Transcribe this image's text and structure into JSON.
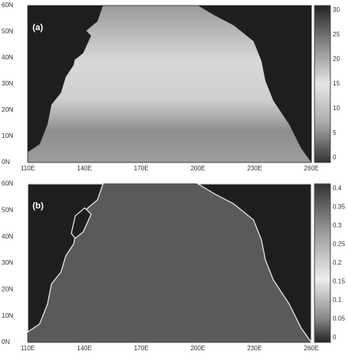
{
  "panels": [
    {
      "label": "(a)",
      "lat_ticks": [
        "60N",
        "50N",
        "40N",
        "30N",
        "20N",
        "10N",
        "0N"
      ],
      "lon_ticks": [
        "110E",
        "140E",
        "170E",
        "200E",
        "230E",
        "260E"
      ],
      "colorbar_ticks": [
        30,
        25,
        20,
        15,
        10,
        5,
        0
      ]
    },
    {
      "label": "(b)",
      "lat_ticks": [
        "60N",
        "50N",
        "40N",
        "30N",
        "20N",
        "10N",
        "0N"
      ],
      "lon_ticks": [
        "110E",
        "140E",
        "170E",
        "200E",
        "230E",
        "260E"
      ],
      "colorbar_ticks": [
        0.4,
        0.35,
        0.3,
        0.25,
        0.2,
        0.15,
        0.1,
        0.05,
        0
      ]
    }
  ]
}
